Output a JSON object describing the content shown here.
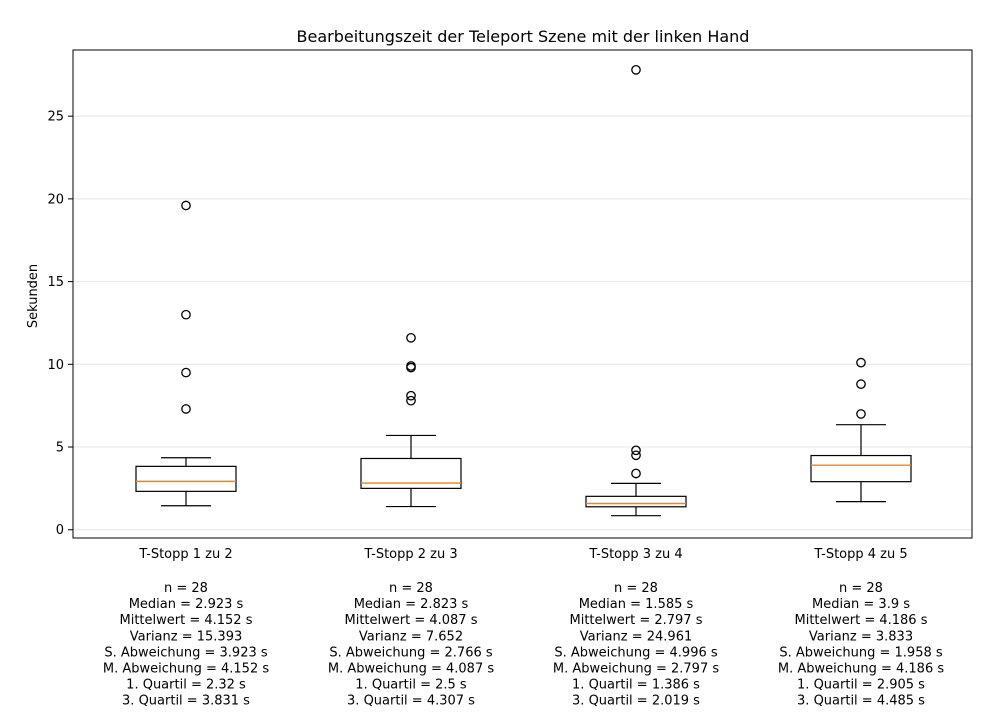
{
  "chart_data": {
    "type": "box",
    "title": "Bearbeitungszeit der Teleport Szene mit der linken Hand",
    "xlabel": "",
    "ylabel": "Sekunden",
    "ylim": [
      -0.5,
      29.0
    ],
    "yticks": [
      0,
      5,
      10,
      15,
      20,
      25
    ],
    "grid": "horizontal",
    "colors": {
      "box": "#000000",
      "median": "#ff7f0e",
      "grid": "#e6e6e6"
    },
    "categories": [
      "T-Stopp 1 zu 2",
      "T-Stopp 2 zu 3",
      "T-Stopp 3 zu 4",
      "T-Stopp 4 zu 5"
    ],
    "boxes": [
      {
        "whisker_low": 1.45,
        "q1": 2.32,
        "median": 2.923,
        "q3": 3.831,
        "whisker_high": 4.35,
        "outliers": [
          7.3,
          9.5,
          13.0,
          19.6
        ]
      },
      {
        "whisker_low": 1.4,
        "q1": 2.5,
        "median": 2.823,
        "q3": 4.307,
        "whisker_high": 5.7,
        "outliers": [
          7.8,
          8.1,
          9.8,
          9.9,
          11.6
        ]
      },
      {
        "whisker_low": 0.85,
        "q1": 1.386,
        "median": 1.585,
        "q3": 2.019,
        "whisker_high": 2.8,
        "outliers": [
          3.4,
          4.5,
          4.8,
          27.8
        ]
      },
      {
        "whisker_low": 1.7,
        "q1": 2.905,
        "median": 3.9,
        "q3": 4.485,
        "whisker_high": 6.35,
        "outliers": [
          7.0,
          8.8,
          10.1
        ]
      }
    ],
    "stats": [
      [
        "n = 28",
        "Median = 2.923 s",
        "Mittelwert = 4.152 s",
        "Varianz = 15.393",
        "S. Abweichung = 3.923 s",
        "M. Abweichung = 4.152 s",
        "1. Quartil = 2.32 s",
        "3. Quartil = 3.831 s"
      ],
      [
        "n = 28",
        "Median = 2.823 s",
        "Mittelwert = 4.087 s",
        "Varianz = 7.652",
        "S. Abweichung = 2.766 s",
        "M. Abweichung = 4.087 s",
        "1. Quartil = 2.5 s",
        "3. Quartil = 4.307 s"
      ],
      [
        "n = 28",
        "Median = 1.585 s",
        "Mittelwert = 2.797 s",
        "Varianz = 24.961",
        "S. Abweichung = 4.996 s",
        "M. Abweichung = 2.797 s",
        "1. Quartil = 1.386 s",
        "3. Quartil = 2.019 s"
      ],
      [
        "n = 28",
        "Median = 3.9 s",
        "Mittelwert = 4.186 s",
        "Varianz = 3.833",
        "S. Abweichung = 1.958 s",
        "M. Abweichung = 4.186 s",
        "1. Quartil = 2.905 s",
        "3. Quartil = 4.485 s"
      ]
    ]
  }
}
